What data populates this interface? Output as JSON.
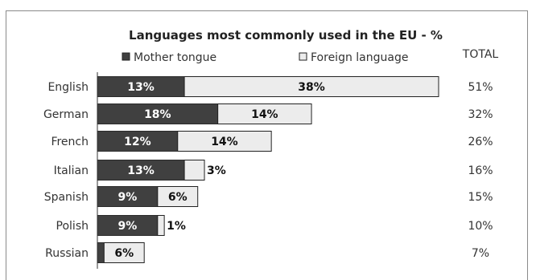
{
  "chart_data": {
    "type": "bar",
    "stacked": true,
    "orientation": "horizontal",
    "title": "Languages most commonly used in the EU - %",
    "total_header": "TOTAL",
    "legend_position": "top",
    "categories": [
      "English",
      "German",
      "French",
      "Italian",
      "Spanish",
      "Polish",
      "Russian"
    ],
    "series": [
      {
        "name": "Mother tongue",
        "values": [
          13,
          18,
          12,
          13,
          9,
          9,
          1
        ],
        "labels": [
          "13%",
          "18%",
          "12%",
          "13%",
          "9%",
          "9%",
          ""
        ],
        "color": "#404040"
      },
      {
        "name": "Foreign language",
        "values": [
          38,
          14,
          14,
          3,
          6,
          1,
          6
        ],
        "labels": [
          "38%",
          "14%",
          "14%",
          "3%",
          "6%",
          "1%",
          "6%"
        ],
        "color": "#ececec"
      }
    ],
    "totals": [
      "51%",
      "32%",
      "26%",
      "16%",
      "15%",
      "10%",
      "7%"
    ],
    "xlim": [
      0,
      51
    ],
    "grid": false
  }
}
